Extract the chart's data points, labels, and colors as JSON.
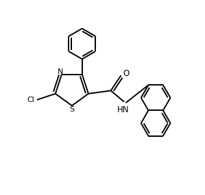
{
  "background_color": "#ffffff",
  "line_color": "#000000",
  "line_width": 1.4,
  "figsize": [
    2.99,
    2.85
  ],
  "dpi": 100,
  "xlim": [
    0,
    10
  ],
  "ylim": [
    0,
    9.5
  ]
}
